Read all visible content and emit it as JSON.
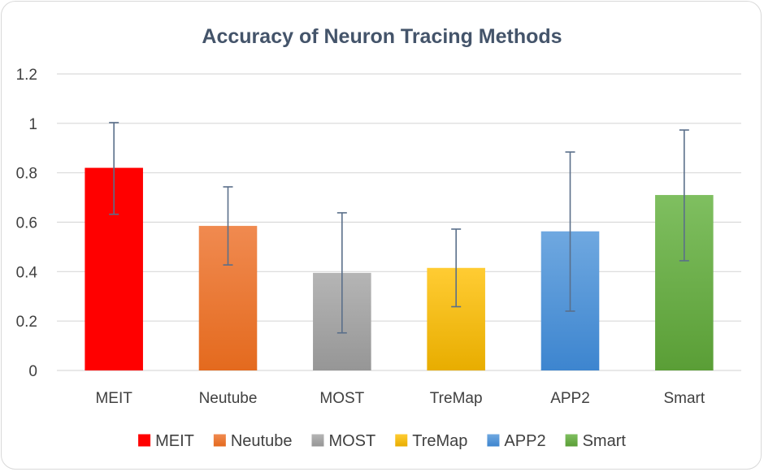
{
  "chart_data": {
    "type": "bar",
    "title": "Accuracy of Neuron Tracing Methods",
    "xlabel": "",
    "ylabel": "",
    "ylim": [
      0,
      1.2
    ],
    "yticks": [
      "0",
      "0.2",
      "0.4",
      "0.6",
      "0.8",
      "1",
      "1.2"
    ],
    "grid": true,
    "legend": "bottom",
    "categories": [
      "MEIT",
      "Neutube",
      "MOST",
      "TreMap",
      "APP2",
      "Smart"
    ],
    "values": [
      0.82,
      0.585,
      0.395,
      0.415,
      0.563,
      0.71
    ],
    "error_low": [
      0.632,
      0.427,
      0.152,
      0.258,
      0.24,
      0.444
    ],
    "error_high": [
      1.003,
      0.743,
      0.638,
      0.572,
      0.884,
      0.973
    ],
    "colors": [
      [
        "#ff0000",
        "#ff0000"
      ],
      [
        "#f08a50",
        "#e46a1e"
      ],
      [
        "#b5b5b5",
        "#969696"
      ],
      [
        "#ffcc33",
        "#e8ad00"
      ],
      [
        "#6fa8e0",
        "#3d85cf"
      ],
      [
        "#7fbf60",
        "#5a9e36"
      ]
    ],
    "error_color": "#5a6f8a"
  }
}
